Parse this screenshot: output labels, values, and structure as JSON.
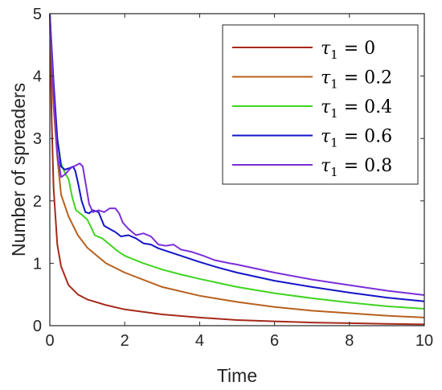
{
  "chart_data": {
    "type": "line",
    "title": "",
    "xlabel": "Time",
    "ylabel": "Number of spreaders",
    "xlim": [
      0,
      10
    ],
    "ylim": [
      0,
      5
    ],
    "xticks": [
      0,
      2,
      4,
      6,
      8,
      10
    ],
    "yticks": [
      0,
      1,
      2,
      3,
      4,
      5
    ],
    "grid": false,
    "legend_position": "top-right",
    "series": [
      {
        "name": "τ₁ = 0",
        "symbol": "τ",
        "subscript": "1",
        "value_label": " = 0",
        "color": "#a52a1a",
        "points": [
          [
            0,
            5
          ],
          [
            0.05,
            3.3
          ],
          [
            0.1,
            2.2
          ],
          [
            0.2,
            1.3
          ],
          [
            0.3,
            0.95
          ],
          [
            0.5,
            0.65
          ],
          [
            0.75,
            0.5
          ],
          [
            1,
            0.42
          ],
          [
            1.5,
            0.33
          ],
          [
            2,
            0.26
          ],
          [
            3,
            0.18
          ],
          [
            4,
            0.13
          ],
          [
            5,
            0.09
          ],
          [
            6,
            0.07
          ],
          [
            7,
            0.05
          ],
          [
            8,
            0.04
          ],
          [
            9,
            0.03
          ],
          [
            10,
            0.02
          ]
        ]
      },
      {
        "name": "τ₁ = 0.2",
        "symbol": "τ",
        "subscript": "1",
        "value_label": " = 0.2",
        "color": "#b8601e",
        "points": [
          [
            0,
            5
          ],
          [
            0.05,
            4.2
          ],
          [
            0.1,
            3.5
          ],
          [
            0.2,
            2.7
          ],
          [
            0.3,
            2.1
          ],
          [
            0.5,
            1.75
          ],
          [
            0.75,
            1.45
          ],
          [
            1,
            1.25
          ],
          [
            1.5,
            1.0
          ],
          [
            2,
            0.85
          ],
          [
            3,
            0.62
          ],
          [
            4,
            0.48
          ],
          [
            5,
            0.38
          ],
          [
            6,
            0.3
          ],
          [
            7,
            0.24
          ],
          [
            8,
            0.2
          ],
          [
            9,
            0.16
          ],
          [
            10,
            0.13
          ]
        ]
      },
      {
        "name": "τ₁ = 0.4",
        "symbol": "τ",
        "subscript": "1",
        "value_label": " = 0.4",
        "color": "#3fd41f",
        "points": [
          [
            0,
            5
          ],
          [
            0.1,
            3.8
          ],
          [
            0.2,
            3.0
          ],
          [
            0.3,
            2.6
          ],
          [
            0.4,
            2.45
          ],
          [
            0.5,
            2.35
          ],
          [
            0.6,
            2.05
          ],
          [
            0.7,
            1.85
          ],
          [
            0.85,
            1.78
          ],
          [
            1.0,
            1.7
          ],
          [
            1.1,
            1.58
          ],
          [
            1.2,
            1.45
          ],
          [
            1.4,
            1.4
          ],
          [
            1.6,
            1.3
          ],
          [
            1.8,
            1.2
          ],
          [
            2,
            1.12
          ],
          [
            2.5,
            1.0
          ],
          [
            3,
            0.9
          ],
          [
            3.5,
            0.82
          ],
          [
            4,
            0.75
          ],
          [
            5,
            0.62
          ],
          [
            6,
            0.52
          ],
          [
            7,
            0.44
          ],
          [
            8,
            0.37
          ],
          [
            9,
            0.31
          ],
          [
            10,
            0.27
          ]
        ]
      },
      {
        "name": "τ₁ = 0.6",
        "symbol": "τ",
        "subscript": "1",
        "value_label": " = 0.6",
        "color": "#1414c8",
        "points": [
          [
            0,
            5
          ],
          [
            0.1,
            3.9
          ],
          [
            0.2,
            3.0
          ],
          [
            0.3,
            2.55
          ],
          [
            0.4,
            2.5
          ],
          [
            0.55,
            2.53
          ],
          [
            0.62,
            2.55
          ],
          [
            0.68,
            2.48
          ],
          [
            0.75,
            2.3
          ],
          [
            0.85,
            2.0
          ],
          [
            0.95,
            1.82
          ],
          [
            1.05,
            1.8
          ],
          [
            1.15,
            1.85
          ],
          [
            1.3,
            1.82
          ],
          [
            1.45,
            1.6
          ],
          [
            1.6,
            1.55
          ],
          [
            1.75,
            1.5
          ],
          [
            1.9,
            1.43
          ],
          [
            2.1,
            1.45
          ],
          [
            2.3,
            1.4
          ],
          [
            2.5,
            1.32
          ],
          [
            2.7,
            1.3
          ],
          [
            2.9,
            1.24
          ],
          [
            3.1,
            1.2
          ],
          [
            3.5,
            1.12
          ],
          [
            4,
            1.02
          ],
          [
            4.5,
            0.93
          ],
          [
            5,
            0.85
          ],
          [
            6,
            0.72
          ],
          [
            7,
            0.62
          ],
          [
            8,
            0.53
          ],
          [
            9,
            0.45
          ],
          [
            10,
            0.39
          ]
        ]
      },
      {
        "name": "τ₁ = 0.8",
        "symbol": "τ",
        "subscript": "1",
        "value_label": " = 0.8",
        "color": "#7a2fd8",
        "points": [
          [
            0,
            5
          ],
          [
            0.1,
            3.7
          ],
          [
            0.2,
            2.75
          ],
          [
            0.3,
            2.38
          ],
          [
            0.4,
            2.42
          ],
          [
            0.55,
            2.52
          ],
          [
            0.7,
            2.57
          ],
          [
            0.8,
            2.6
          ],
          [
            0.88,
            2.55
          ],
          [
            0.95,
            2.3
          ],
          [
            1.05,
            1.95
          ],
          [
            1.15,
            1.82
          ],
          [
            1.3,
            1.85
          ],
          [
            1.45,
            1.82
          ],
          [
            1.6,
            1.88
          ],
          [
            1.75,
            1.88
          ],
          [
            1.85,
            1.8
          ],
          [
            1.95,
            1.65
          ],
          [
            2.1,
            1.55
          ],
          [
            2.3,
            1.45
          ],
          [
            2.5,
            1.48
          ],
          [
            2.7,
            1.43
          ],
          [
            2.9,
            1.3
          ],
          [
            3.1,
            1.28
          ],
          [
            3.3,
            1.3
          ],
          [
            3.5,
            1.22
          ],
          [
            3.8,
            1.18
          ],
          [
            4.1,
            1.12
          ],
          [
            4.4,
            1.05
          ],
          [
            4.8,
            1.0
          ],
          [
            5,
            0.98
          ],
          [
            6,
            0.85
          ],
          [
            7,
            0.74
          ],
          [
            8,
            0.65
          ],
          [
            9,
            0.56
          ],
          [
            10,
            0.49
          ]
        ]
      }
    ]
  }
}
